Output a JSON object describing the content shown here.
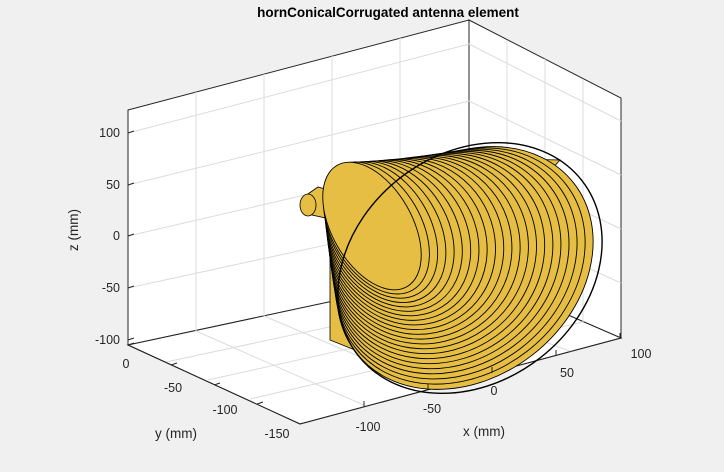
{
  "window": {
    "background": "#f0f0f0"
  },
  "chart_data": {
    "type": "3d-surface",
    "title": "hornConicalCorrugated antenna element",
    "xlabel": "x (mm)",
    "ylabel": "y (mm)",
    "zlabel": "z (mm)",
    "xticks": [
      "-100",
      "-50",
      "0",
      "50",
      "100"
    ],
    "yticks": [
      "0",
      "-50",
      "-100",
      "-150"
    ],
    "zticks": [
      "100",
      "50",
      "0",
      "-50",
      "-100"
    ],
    "grid": true,
    "box": true,
    "surface_color": "#e6be43",
    "edge_color": "#000000",
    "object": "hornConicalCorrugated"
  }
}
